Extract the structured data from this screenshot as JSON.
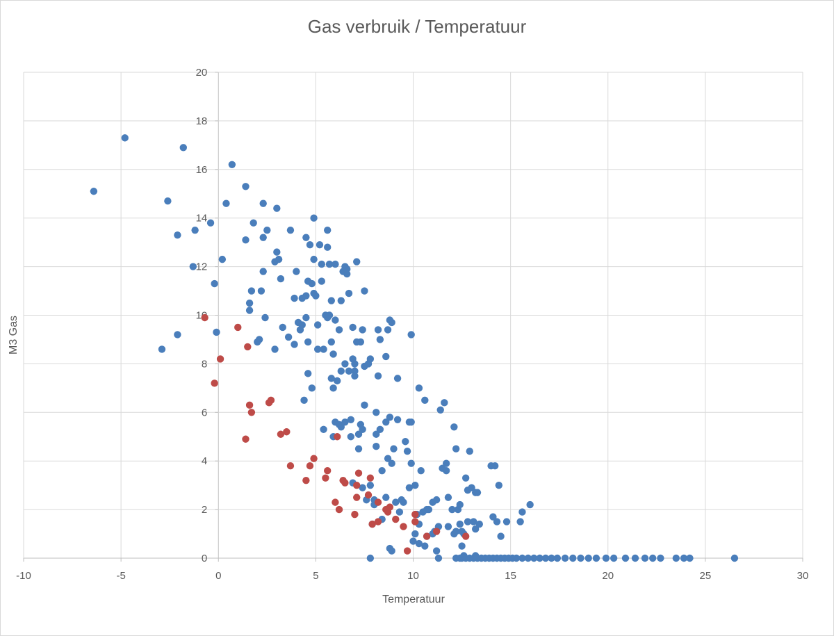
{
  "chart_data": {
    "type": "scatter",
    "title": "Gas verbruik / Temperatuur",
    "xlabel": "Temperatuur",
    "ylabel": "M3 Gas",
    "xlim": [
      -10,
      30
    ],
    "ylim": [
      0,
      20
    ],
    "xticks": [
      "-10",
      "-5",
      "0",
      "5",
      "10",
      "15",
      "20",
      "25",
      "30"
    ],
    "yticks": [
      "0",
      "2",
      "4",
      "6",
      "8",
      "10",
      "12",
      "14",
      "16",
      "18",
      "20"
    ],
    "grid": true,
    "legend": "none",
    "colors": {
      "series_blue": "#4a7ebb",
      "series_red": "#be4b48",
      "grid": "#d9d9d9",
      "text": "#595959"
    },
    "series": [
      {
        "color": "#4a7ebb",
        "points": [
          [
            -6.4,
            15.1
          ],
          [
            -4.8,
            17.3
          ],
          [
            -2.6,
            14.7
          ],
          [
            -2.1,
            13.3
          ],
          [
            -1.8,
            16.9
          ],
          [
            -1.2,
            13.5
          ],
          [
            -1.3,
            12.0
          ],
          [
            -2.9,
            8.6
          ],
          [
            -2.1,
            9.2
          ],
          [
            -0.4,
            13.8
          ],
          [
            -0.2,
            11.3
          ],
          [
            -0.1,
            9.3
          ],
          [
            0.2,
            12.3
          ],
          [
            0.4,
            14.6
          ],
          [
            0.7,
            16.2
          ],
          [
            1.4,
            15.3
          ],
          [
            1.4,
            13.1
          ],
          [
            1.8,
            13.8
          ],
          [
            1.7,
            11.0
          ],
          [
            1.6,
            10.5
          ],
          [
            1.6,
            10.2
          ],
          [
            2.0,
            8.9
          ],
          [
            2.1,
            9.0
          ],
          [
            2.2,
            11.0
          ],
          [
            2.3,
            11.8
          ],
          [
            2.3,
            13.2
          ],
          [
            2.3,
            14.6
          ],
          [
            2.4,
            9.9
          ],
          [
            2.5,
            13.5
          ],
          [
            2.9,
            8.6
          ],
          [
            2.9,
            12.2
          ],
          [
            3.0,
            12.6
          ],
          [
            3.0,
            14.4
          ],
          [
            3.1,
            12.3
          ],
          [
            3.2,
            11.5
          ],
          [
            3.3,
            9.5
          ],
          [
            3.6,
            9.1
          ],
          [
            3.7,
            13.5
          ],
          [
            3.9,
            10.7
          ],
          [
            3.9,
            8.8
          ],
          [
            4.0,
            11.8
          ],
          [
            4.1,
            9.7
          ],
          [
            4.2,
            9.4
          ],
          [
            4.3,
            10.7
          ],
          [
            4.3,
            9.6
          ],
          [
            4.4,
            6.5
          ],
          [
            4.5,
            9.9
          ],
          [
            4.5,
            10.8
          ],
          [
            4.5,
            13.2
          ],
          [
            4.6,
            11.4
          ],
          [
            4.6,
            8.9
          ],
          [
            4.6,
            7.6
          ],
          [
            4.7,
            12.9
          ],
          [
            4.8,
            11.3
          ],
          [
            4.8,
            7.0
          ],
          [
            4.9,
            14.0
          ],
          [
            4.9,
            10.9
          ],
          [
            4.9,
            12.3
          ],
          [
            5.0,
            10.8
          ],
          [
            5.1,
            8.6
          ],
          [
            5.1,
            9.6
          ],
          [
            5.2,
            12.9
          ],
          [
            5.3,
            12.1
          ],
          [
            5.3,
            11.4
          ],
          [
            5.4,
            5.3
          ],
          [
            5.4,
            8.6
          ],
          [
            5.5,
            10.0
          ],
          [
            5.6,
            9.9
          ],
          [
            5.6,
            12.8
          ],
          [
            5.6,
            13.5
          ],
          [
            5.7,
            12.1
          ],
          [
            5.7,
            10.0
          ],
          [
            5.8,
            10.6
          ],
          [
            5.8,
            8.9
          ],
          [
            5.8,
            7.4
          ],
          [
            5.9,
            5.0
          ],
          [
            5.9,
            8.4
          ],
          [
            5.9,
            7.0
          ],
          [
            6.0,
            12.1
          ],
          [
            6.0,
            9.8
          ],
          [
            6.0,
            5.6
          ],
          [
            6.1,
            7.3
          ],
          [
            6.2,
            9.4
          ],
          [
            6.2,
            5.5
          ],
          [
            6.3,
            10.6
          ],
          [
            6.3,
            5.4
          ],
          [
            6.3,
            7.7
          ],
          [
            6.4,
            11.8
          ],
          [
            6.5,
            12.0
          ],
          [
            6.5,
            5.6
          ],
          [
            6.5,
            8.0
          ],
          [
            6.6,
            11.9
          ],
          [
            6.6,
            11.7
          ],
          [
            6.7,
            10.9
          ],
          [
            6.7,
            7.7
          ],
          [
            6.8,
            5.7
          ],
          [
            6.8,
            5.0
          ],
          [
            6.9,
            9.5
          ],
          [
            6.9,
            8.2
          ],
          [
            6.9,
            3.1
          ],
          [
            7.0,
            7.5
          ],
          [
            7.0,
            8.0
          ],
          [
            7.0,
            7.7
          ],
          [
            7.1,
            12.2
          ],
          [
            7.1,
            8.9
          ],
          [
            7.2,
            5.1
          ],
          [
            7.2,
            4.5
          ],
          [
            7.3,
            8.9
          ],
          [
            7.3,
            5.5
          ],
          [
            7.4,
            5.3
          ],
          [
            7.4,
            2.9
          ],
          [
            7.4,
            9.4
          ],
          [
            7.5,
            6.3
          ],
          [
            7.5,
            11.0
          ],
          [
            7.5,
            7.9
          ],
          [
            7.6,
            2.4
          ],
          [
            7.7,
            8.0
          ],
          [
            7.8,
            8.2
          ],
          [
            7.8,
            3.0
          ],
          [
            7.9,
            1.4
          ],
          [
            8.0,
            2.2
          ],
          [
            8.0,
            2.4
          ],
          [
            8.1,
            6.0
          ],
          [
            8.1,
            5.1
          ],
          [
            8.1,
            4.6
          ],
          [
            8.2,
            9.4
          ],
          [
            8.2,
            7.5
          ],
          [
            8.3,
            9.0
          ],
          [
            8.3,
            5.3
          ],
          [
            8.4,
            3.6
          ],
          [
            8.4,
            1.6
          ],
          [
            8.6,
            5.6
          ],
          [
            8.6,
            8.3
          ],
          [
            8.6,
            2.5
          ],
          [
            8.7,
            4.1
          ],
          [
            8.7,
            9.4
          ],
          [
            8.8,
            5.8
          ],
          [
            8.8,
            9.8
          ],
          [
            8.9,
            9.7
          ],
          [
            8.9,
            3.9
          ],
          [
            9.0,
            4.5
          ],
          [
            9.1,
            2.3
          ],
          [
            9.2,
            7.4
          ],
          [
            9.2,
            5.7
          ],
          [
            9.3,
            1.9
          ],
          [
            9.4,
            2.4
          ],
          [
            9.5,
            2.3
          ],
          [
            9.6,
            4.8
          ],
          [
            9.7,
            4.4
          ],
          [
            9.8,
            5.6
          ],
          [
            9.8,
            2.9
          ],
          [
            9.9,
            9.2
          ],
          [
            9.9,
            3.9
          ],
          [
            9.9,
            5.6
          ],
          [
            10.0,
            0.7
          ],
          [
            10.1,
            1.0
          ],
          [
            10.1,
            3.0
          ],
          [
            10.2,
            1.8
          ],
          [
            10.3,
            7.0
          ],
          [
            10.3,
            0.6
          ],
          [
            10.3,
            1.4
          ],
          [
            10.4,
            3.6
          ],
          [
            10.5,
            1.9
          ],
          [
            10.6,
            6.5
          ],
          [
            10.6,
            0.5
          ],
          [
            10.7,
            0.9
          ],
          [
            10.7,
            2.0
          ],
          [
            10.8,
            2.0
          ],
          [
            11.0,
            2.3
          ],
          [
            11.0,
            1.0
          ],
          [
            11.1,
            1.1
          ],
          [
            11.2,
            2.4
          ],
          [
            11.2,
            0.3
          ],
          [
            11.3,
            1.3
          ],
          [
            11.4,
            6.1
          ],
          [
            11.5,
            3.7
          ],
          [
            11.6,
            6.4
          ],
          [
            11.7,
            3.6
          ],
          [
            11.7,
            3.9
          ],
          [
            11.8,
            1.3
          ],
          [
            11.8,
            2.5
          ],
          [
            12.0,
            2.0
          ],
          [
            12.1,
            5.4
          ],
          [
            12.1,
            1.0
          ],
          [
            12.2,
            1.1
          ],
          [
            12.2,
            4.5
          ],
          [
            12.3,
            2.0
          ],
          [
            12.4,
            1.4
          ],
          [
            12.4,
            2.2
          ],
          [
            12.5,
            1.1
          ],
          [
            12.5,
            0.5
          ],
          [
            12.6,
            1.0
          ],
          [
            12.7,
            3.3
          ],
          [
            12.8,
            2.8
          ],
          [
            12.8,
            1.5
          ],
          [
            12.9,
            4.4
          ],
          [
            13.0,
            2.9
          ],
          [
            13.1,
            1.5
          ],
          [
            13.2,
            2.7
          ],
          [
            13.2,
            1.2
          ],
          [
            13.3,
            2.7
          ],
          [
            13.4,
            1.4
          ],
          [
            14.0,
            3.8
          ],
          [
            14.1,
            1.7
          ],
          [
            14.2,
            3.8
          ],
          [
            14.3,
            1.5
          ],
          [
            14.4,
            3.0
          ],
          [
            14.5,
            0.9
          ],
          [
            14.8,
            1.5
          ],
          [
            15.5,
            1.5
          ],
          [
            15.6,
            1.9
          ],
          [
            16.0,
            2.2
          ],
          [
            7.8,
            0.0
          ],
          [
            11.3,
            0.0
          ],
          [
            12.2,
            0.0
          ],
          [
            12.4,
            0.0
          ],
          [
            12.5,
            0.0
          ],
          [
            12.7,
            0.0
          ],
          [
            12.9,
            0.0
          ],
          [
            13.1,
            0.0
          ],
          [
            13.3,
            0.0
          ],
          [
            13.5,
            0.0
          ],
          [
            13.7,
            0.0
          ],
          [
            13.9,
            0.0
          ],
          [
            14.1,
            0.0
          ],
          [
            14.3,
            0.0
          ],
          [
            14.5,
            0.0
          ],
          [
            14.7,
            0.0
          ],
          [
            14.9,
            0.0
          ],
          [
            15.1,
            0.0
          ],
          [
            15.3,
            0.0
          ],
          [
            15.6,
            0.0
          ],
          [
            15.9,
            0.0
          ],
          [
            16.2,
            0.0
          ],
          [
            16.5,
            0.0
          ],
          [
            16.8,
            0.0
          ],
          [
            17.1,
            0.0
          ],
          [
            17.4,
            0.0
          ],
          [
            17.8,
            0.0
          ],
          [
            18.2,
            0.0
          ],
          [
            18.6,
            0.0
          ],
          [
            19.0,
            0.0
          ],
          [
            19.4,
            0.0
          ],
          [
            19.9,
            0.0
          ],
          [
            20.3,
            0.0
          ],
          [
            20.9,
            0.0
          ],
          [
            21.4,
            0.0
          ],
          [
            21.9,
            0.0
          ],
          [
            22.3,
            0.0
          ],
          [
            22.7,
            0.0
          ],
          [
            23.5,
            0.0
          ],
          [
            23.9,
            0.0
          ],
          [
            24.2,
            0.0
          ],
          [
            26.5,
            0.0
          ],
          [
            12.6,
            0.1
          ],
          [
            13.2,
            0.1
          ],
          [
            8.8,
            0.4
          ],
          [
            8.9,
            0.3
          ]
        ]
      },
      {
        "color": "#be4b48",
        "points": [
          [
            -0.7,
            9.9
          ],
          [
            -0.2,
            7.2
          ],
          [
            0.1,
            8.2
          ],
          [
            1.0,
            9.5
          ],
          [
            1.5,
            8.7
          ],
          [
            1.6,
            6.3
          ],
          [
            1.7,
            6.0
          ],
          [
            1.4,
            4.9
          ],
          [
            2.6,
            6.4
          ],
          [
            2.7,
            6.5
          ],
          [
            3.2,
            5.1
          ],
          [
            3.5,
            5.2
          ],
          [
            3.7,
            3.8
          ],
          [
            4.5,
            3.2
          ],
          [
            4.7,
            3.8
          ],
          [
            4.9,
            4.1
          ],
          [
            5.5,
            3.3
          ],
          [
            5.6,
            3.6
          ],
          [
            6.0,
            2.3
          ],
          [
            6.1,
            5.0
          ],
          [
            6.2,
            2.0
          ],
          [
            6.4,
            3.2
          ],
          [
            6.5,
            3.1
          ],
          [
            7.0,
            1.8
          ],
          [
            7.1,
            2.5
          ],
          [
            7.1,
            3.0
          ],
          [
            7.2,
            3.5
          ],
          [
            7.7,
            2.6
          ],
          [
            7.8,
            3.3
          ],
          [
            7.9,
            1.4
          ],
          [
            8.2,
            2.3
          ],
          [
            8.2,
            1.5
          ],
          [
            8.6,
            2.0
          ],
          [
            8.7,
            1.9
          ],
          [
            8.8,
            2.1
          ],
          [
            9.1,
            1.6
          ],
          [
            9.5,
            1.3
          ],
          [
            9.7,
            0.3
          ],
          [
            10.1,
            1.5
          ],
          [
            10.1,
            1.8
          ],
          [
            10.7,
            0.9
          ],
          [
            11.2,
            1.1
          ],
          [
            12.7,
            0.9
          ]
        ]
      }
    ]
  }
}
